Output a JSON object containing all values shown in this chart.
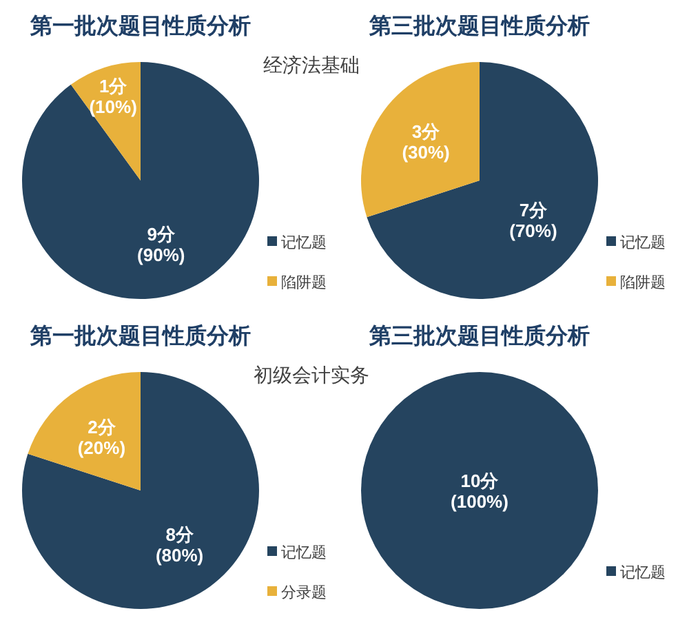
{
  "chart_data": [
    {
      "type": "pie",
      "title": "第一批次题目性质分析",
      "subtitle": "经济法基础",
      "categories": [
        "记忆题",
        "陷阱题"
      ],
      "values": [
        9,
        1
      ],
      "colors": [
        "#25445f",
        "#e8b13b"
      ],
      "value_labels": [
        "9分\n(90%)",
        "1分\n(10%)"
      ],
      "legend": "right"
    },
    {
      "type": "pie",
      "title": "第三批次题目性质分析",
      "categories": [
        "记忆题",
        "陷阱题"
      ],
      "values": [
        7,
        3
      ],
      "colors": [
        "#25445f",
        "#e8b13b"
      ],
      "value_labels": [
        "7分\n(70%)",
        "3分\n(30%)"
      ],
      "legend": "right"
    },
    {
      "type": "pie",
      "title": "第一批次题目性质分析",
      "subtitle": "初级会计实务",
      "categories": [
        "记忆题",
        "分录题"
      ],
      "values": [
        8,
        2
      ],
      "colors": [
        "#25445f",
        "#e8b13b"
      ],
      "value_labels": [
        "8分\n(80%)",
        "2分\n(20%)"
      ],
      "legend": "right"
    },
    {
      "type": "pie",
      "title": "第三批次题目性质分析",
      "categories": [
        "记忆题"
      ],
      "values": [
        10
      ],
      "colors": [
        "#25445f"
      ],
      "value_labels": [
        "10分\n(100%)"
      ],
      "legend": "right"
    }
  ]
}
